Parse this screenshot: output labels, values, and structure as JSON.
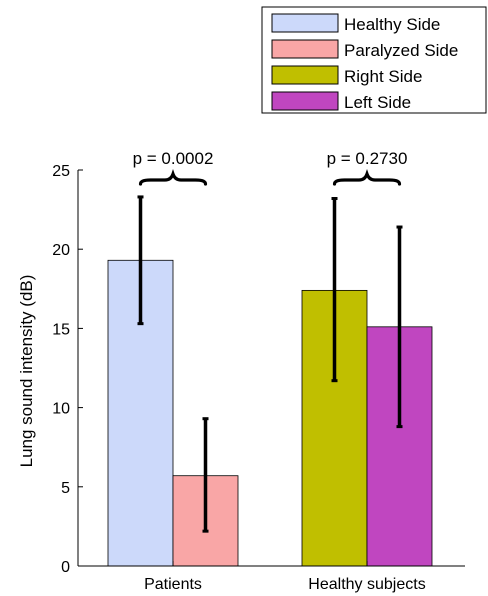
{
  "chart_data": {
    "type": "bar",
    "ylabel": "Lung sound intensity (dB)",
    "ylim": [
      0,
      25
    ],
    "yticks": [
      0,
      5,
      10,
      15,
      20,
      25
    ],
    "grid": false,
    "legend_placement": "top-right",
    "groups": [
      {
        "label": "Patients",
        "p_value": "p = 0.0002",
        "bars": [
          {
            "series": "Healthy Side",
            "value": 19.3,
            "err_low": 15.3,
            "err_high": 23.3,
            "color": "#ccd9fa"
          },
          {
            "series": "Paralyzed Side",
            "value": 5.7,
            "err_low": 2.2,
            "err_high": 9.3,
            "color": "#f9a6a6"
          }
        ]
      },
      {
        "label": "Healthy subjects",
        "p_value": "p = 0.2730",
        "bars": [
          {
            "series": "Right Side",
            "value": 17.4,
            "err_low": 11.7,
            "err_high": 23.2,
            "color": "#c0bf00"
          },
          {
            "series": "Left Side",
            "value": 15.1,
            "err_low": 8.8,
            "err_high": 21.4,
            "color": "#c046c0"
          }
        ]
      }
    ],
    "legend": [
      {
        "name": "Healthy Side",
        "color": "#ccd9fa"
      },
      {
        "name": "Paralyzed Side",
        "color": "#f9a6a6"
      },
      {
        "name": "Right Side",
        "color": "#c0bf00"
      },
      {
        "name": "Left Side",
        "color": "#c046c0"
      }
    ]
  }
}
